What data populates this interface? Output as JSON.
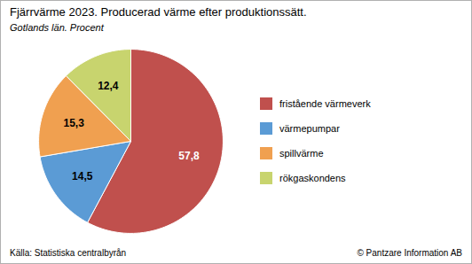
{
  "chart_data": {
    "type": "pie",
    "title": "Fjärrvärme 2023. Producerad värme efter produktionssätt.",
    "subtitle": "Gotlands län. Procent",
    "categories": [
      "fristående värmeverk",
      "värmepumpar",
      "spillvärme",
      "rökgaskondens"
    ],
    "values": [
      57.8,
      14.5,
      15.3,
      12.4
    ],
    "value_labels": [
      "57,8",
      "14,5",
      "15,3",
      "12,4"
    ],
    "colors": [
      "#c0504d",
      "#5b9bd5",
      "#f0a050",
      "#c8d46e"
    ],
    "data_labels": true,
    "legend": "right",
    "annotations": [
      "Källa: Statistiska centralbyrån",
      "© Pantzare Information AB"
    ]
  }
}
